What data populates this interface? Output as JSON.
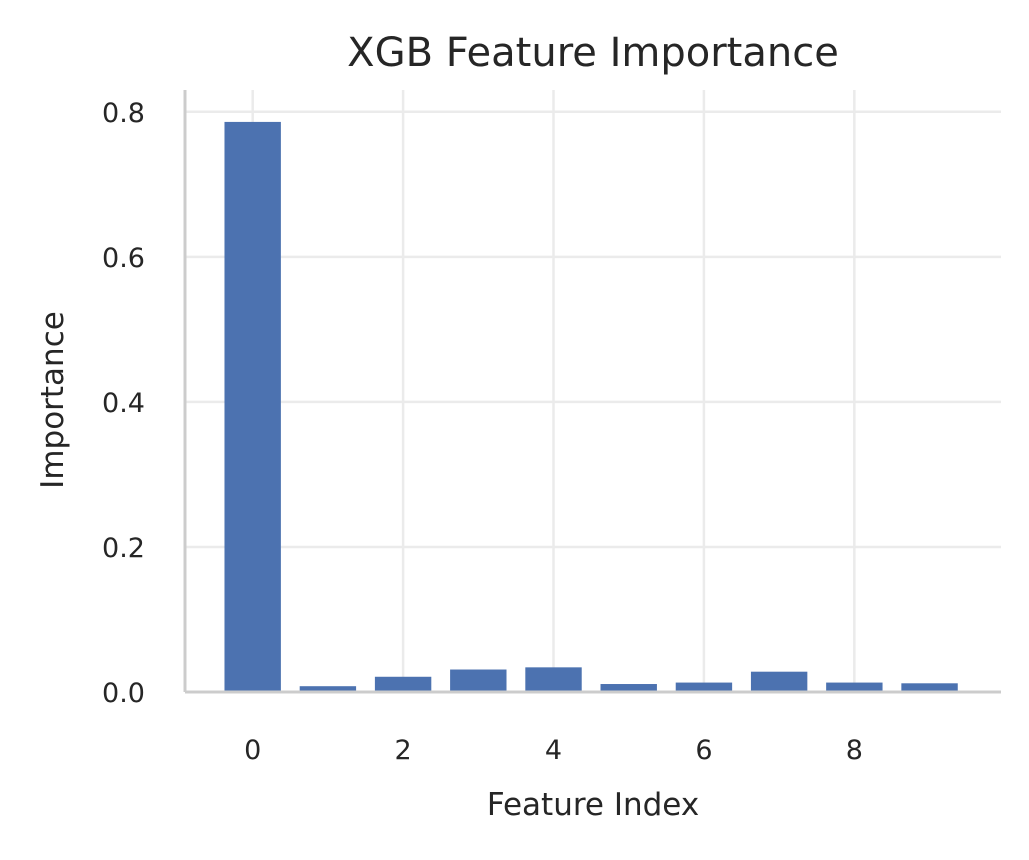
{
  "chart_data": {
    "type": "bar",
    "title": "XGB Feature Importance",
    "xlabel": "Feature Index",
    "ylabel": "Importance",
    "categories": [
      0,
      1,
      2,
      3,
      4,
      5,
      6,
      7,
      8,
      9
    ],
    "values": [
      0.786,
      0.008,
      0.021,
      0.031,
      0.034,
      0.011,
      0.013,
      0.028,
      0.013,
      0.012
    ],
    "xlim": [
      -0.9,
      9.95
    ],
    "ylim": [
      0,
      0.83
    ],
    "x_ticks": [
      0,
      2,
      4,
      6,
      8
    ],
    "x_tick_labels": [
      "0",
      "2",
      "4",
      "6",
      "8"
    ],
    "y_ticks": [
      0,
      0.2,
      0.4,
      0.6,
      0.8
    ],
    "y_tick_labels": [
      "0.0",
      "0.2",
      "0.4",
      "0.6",
      "0.8"
    ],
    "bar_color": "#4c72b0",
    "grid": true
  }
}
